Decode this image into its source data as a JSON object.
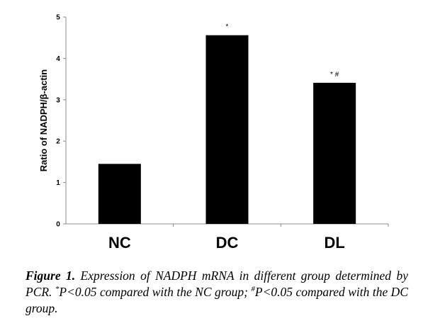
{
  "chart_data": {
    "type": "bar",
    "categories": [
      "NC",
      "DC",
      "DL"
    ],
    "values": [
      1.45,
      4.56,
      3.41
    ],
    "significance": [
      "",
      "*",
      "* #"
    ],
    "ylabel": "Ratio of NADPH/β-actin",
    "xlabel": "",
    "ylim": [
      0,
      5
    ],
    "yticks": [
      0,
      1,
      2,
      3,
      4,
      5
    ],
    "grid": false,
    "bar_color": "#000000"
  },
  "caption": {
    "label": "Figure 1",
    "label_punct": ".",
    "text_1": " Expression of NADPH mRNA in different group determined by PCR. ",
    "sup_1": "*",
    "text_2": "P<0.05 compared with the NC group; ",
    "sup_2": "#",
    "text_3": "P<0.05 compared with the DC group."
  }
}
